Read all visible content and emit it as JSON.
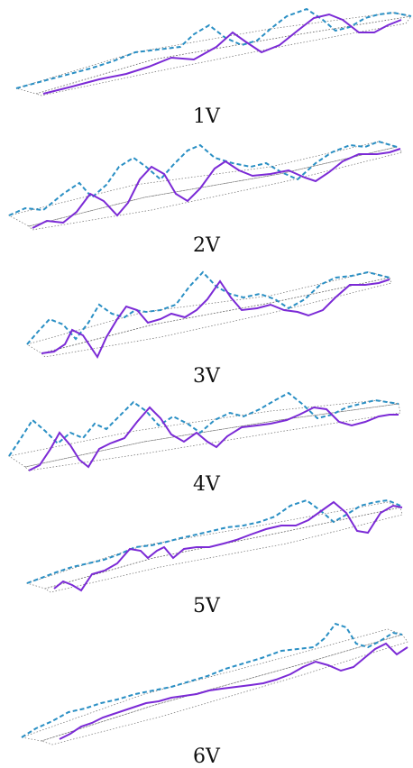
{
  "colors": {
    "solid_wave": "#7b2ad6",
    "dashed_wave": "#2a8fc4",
    "grid": "#6b6b6b",
    "label": "#111111"
  },
  "panels": [
    {
      "label": "1V"
    },
    {
      "label": "2V"
    },
    {
      "label": "3V"
    },
    {
      "label": "4V"
    },
    {
      "label": "5V"
    },
    {
      "label": "6V"
    }
  ]
}
